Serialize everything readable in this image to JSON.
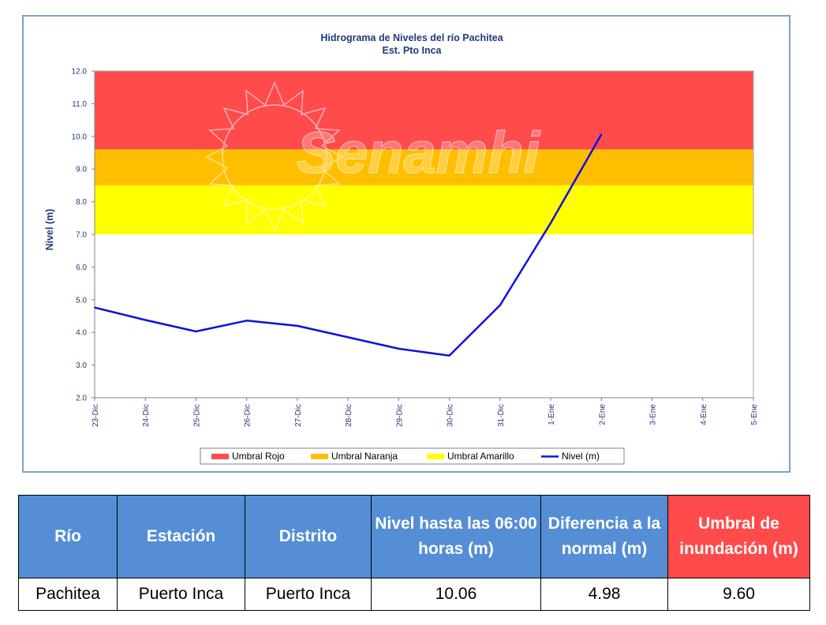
{
  "chart_data": {
    "type": "line",
    "title": "Hidrograma de Niveles del río Pachitea",
    "subtitle": "Est. Pto Inca",
    "ylabel": "Nivel (m)",
    "xlabel": "",
    "ylim": [
      2.0,
      12.0
    ],
    "y_ticks": [
      "2.0",
      "3.0",
      "4.0",
      "5.0",
      "6.0",
      "7.0",
      "8.0",
      "9.0",
      "10.0",
      "11.0",
      "12.0"
    ],
    "categories": [
      "23-Dic",
      "24-Dic",
      "25-Dic",
      "26-Dic",
      "27-Dic",
      "28-Dic",
      "29-Dic",
      "30-Dic",
      "31-Dic",
      "1-Ene",
      "2-Ene",
      "3-Ene",
      "4-Ene",
      "5-Ene"
    ],
    "series": [
      {
        "name": "Nivel (m)",
        "color": "#1010e0",
        "x": [
          0,
          1,
          2,
          3,
          4,
          5,
          6,
          7,
          8,
          9,
          10
        ],
        "values": [
          4.76,
          4.38,
          4.03,
          4.36,
          4.2,
          3.85,
          3.5,
          3.29,
          4.83,
          7.35,
          10.06
        ]
      }
    ],
    "bands": [
      {
        "name": "Umbral Rojo",
        "from": 9.6,
        "to": 12.0,
        "color": "#ff4b4b"
      },
      {
        "name": "Umbral Naranja",
        "from": 8.5,
        "to": 9.6,
        "color": "#ffbf00"
      },
      {
        "name": "Umbral Amarillo",
        "from": 7.0,
        "to": 8.5,
        "color": "#ffff00"
      }
    ],
    "legend": [
      "Umbral Rojo",
      "Umbral Naranja",
      "Umbral Amarillo",
      "Nivel (m)"
    ],
    "legend_position": "bottom",
    "watermark": "Senamhi",
    "grid": false
  },
  "table": {
    "headers": [
      "Río",
      "Estación",
      "Distrito",
      "Nivel hasta las 06:00 horas (m)",
      "Diferencia a la normal (m)",
      "Umbral de inundación (m)"
    ],
    "row": [
      "Pachitea",
      "Puerto Inca",
      "Puerto Inca",
      "10.06",
      "4.98",
      "9.60"
    ]
  },
  "colors": {
    "header_blue": "#558ed5",
    "header_red": "#ff4b4b",
    "frame_border": "#7aa3cc"
  }
}
